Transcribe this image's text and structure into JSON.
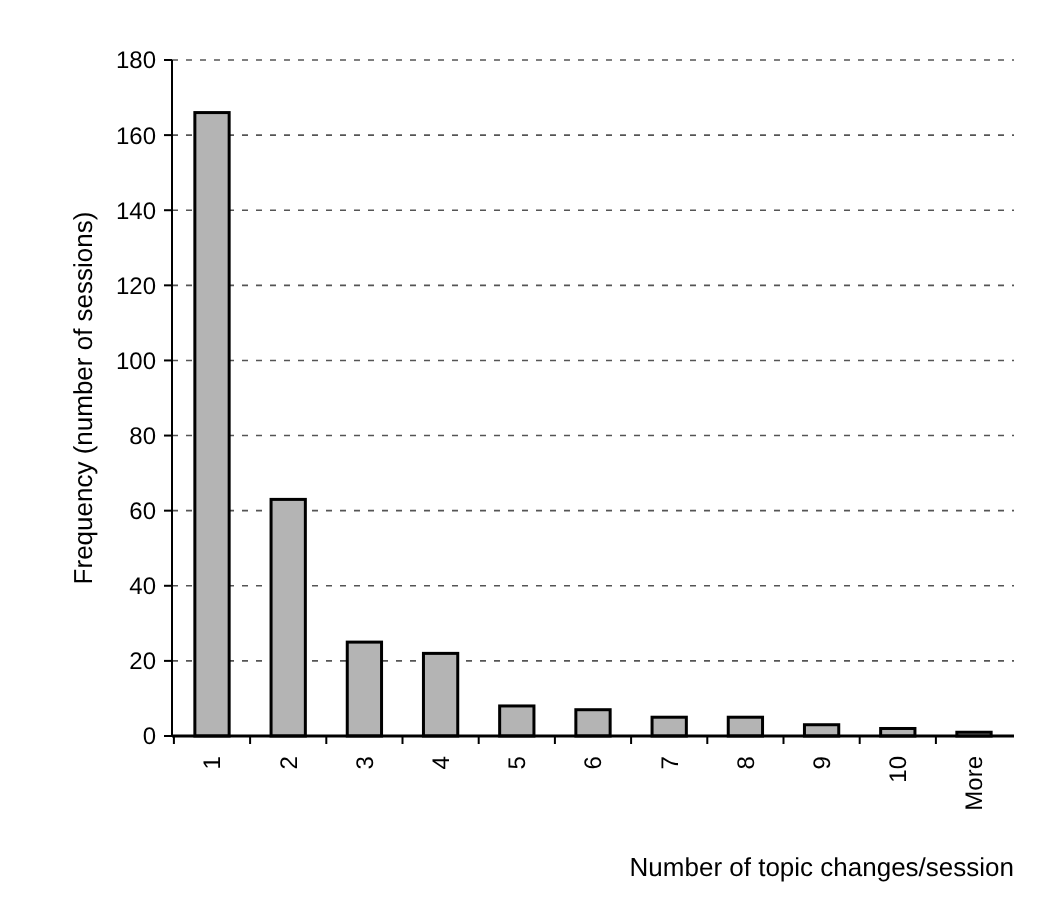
{
  "chart_data": {
    "type": "bar",
    "xlabel": "Number of topic changes/session",
    "ylabel": "Frequency (number of sessions)",
    "categories": [
      "1",
      "2",
      "3",
      "4",
      "5",
      "6",
      "7",
      "8",
      "9",
      "10",
      "More"
    ],
    "values": [
      166,
      63,
      25,
      22,
      8,
      7,
      5,
      5,
      3,
      2,
      1
    ],
    "color": "#b4b4b4",
    "ylim": [
      0,
      180
    ],
    "yticks": [
      0,
      20,
      40,
      60,
      80,
      100,
      120,
      140,
      160,
      180
    ],
    "grid": "y"
  }
}
